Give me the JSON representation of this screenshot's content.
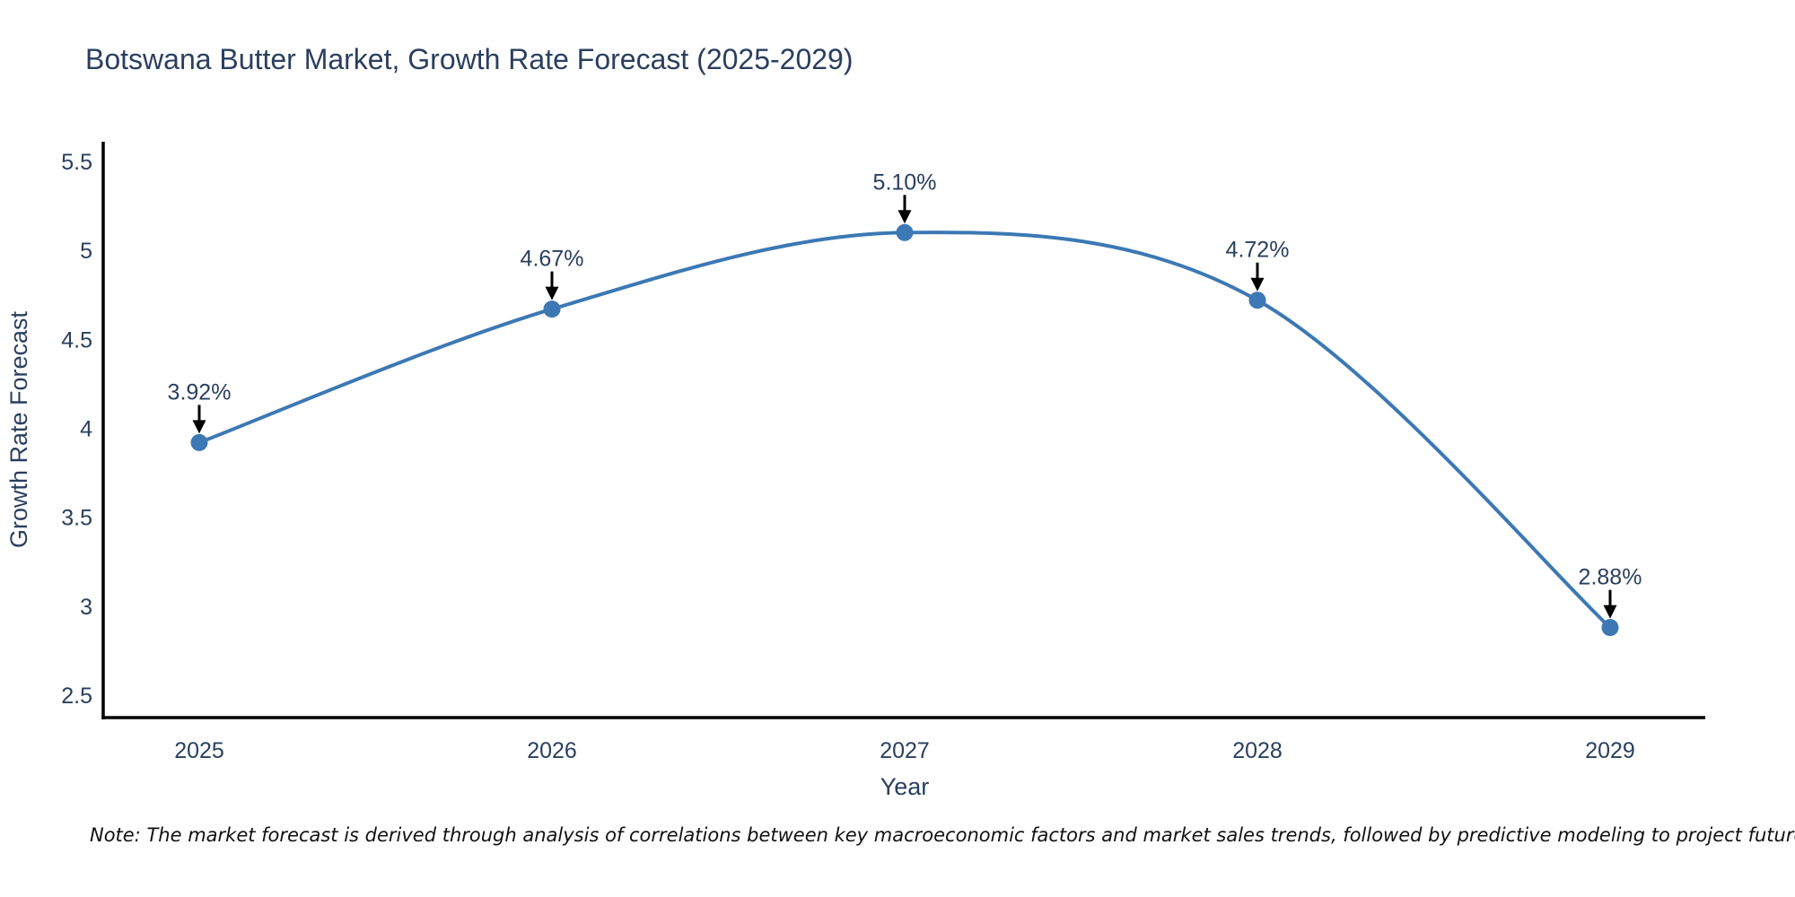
{
  "chart_data": {
    "type": "line",
    "title": "Botswana Butter Market, Growth Rate Forecast (2025-2029)",
    "xlabel": "Year",
    "ylabel": "Growth Rate Forecast",
    "categories": [
      "2025",
      "2026",
      "2027",
      "2028",
      "2029"
    ],
    "values": [
      3.92,
      4.67,
      5.1,
      4.72,
      2.88
    ],
    "point_labels": [
      "3.92%",
      "4.67%",
      "5.10%",
      "4.72%",
      "2.88%"
    ],
    "y_ticks": [
      5.5,
      5,
      4.5,
      4,
      3.5,
      3,
      2.5
    ],
    "ylim": [
      2.5,
      5.5
    ],
    "line_shape": "spline",
    "grid": false,
    "legend_position": "none",
    "line_color": "#3c78b4",
    "marker_color": "#3c78b4",
    "axis_line_color": "#000000",
    "annotation_arrow_color": "#000000",
    "text_color": "#2a3f5f"
  },
  "note": {
    "text": "Note: The market forecast is derived through analysis of correlations between key macroeconomic factors and market sales trends, followed by predictive modeling to project future sales"
  }
}
